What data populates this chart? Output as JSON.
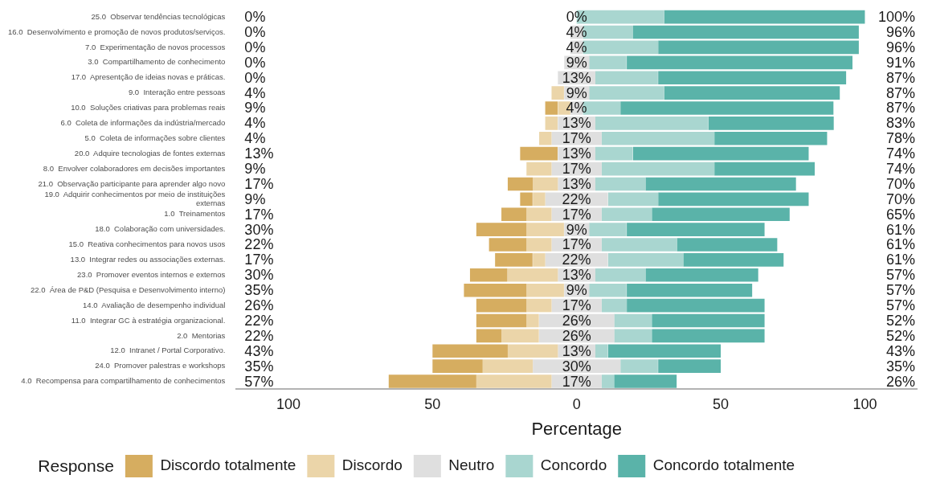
{
  "chart_data": {
    "type": "bar",
    "orientation": "horizontal",
    "xlabel": "Percentage",
    "legend_title": "Response",
    "legend": "bottom",
    "grid": false,
    "categories": [
      "25.0  Observar tendências tecnológicas",
      "16.0  Desenvolvimento e promoção de novos produtos/serviços.",
      "7.0  Experimentação de novos processos",
      "3.0  Compartilhamento de conhecimento",
      "17.0  Apresentção de ideias novas e práticas.",
      "9.0  Interação entre pessoas",
      "10.0  Soluções criativas para problemas reais",
      "6.0  Coleta de informações da indústria/mercado",
      "5.0  Coleta de informações sobre clientes",
      "20.0  Adquire tecnologias de fontes externas",
      "8.0  Envolver colaboradores em decisões importantes",
      "21.0  Observação participante para aprender algo novo",
      "19.0  Adquirir conhecimentos por meio de instituições\nexternas",
      "1.0  Treinamentos",
      "18.0  Colaboração com universidades.",
      "15.0  Reativa conhecimentos para novos usos",
      "13.0  Integrar redes ou associações externas.",
      "23.0  Promover eventos internos e externos",
      "22.0  Área de P&D (Pesquisa e Desenvolvimento interno)",
      "14.0  Avaliação de desempenho individual",
      "11.0  Integrar GC à estratégia organizacional.",
      "2.0  Mentorias",
      "12.0  Intranet / Portal Corporativo.",
      "24.0  Promover palestras e workshops",
      "4.0  Recompensa para compartilhamento de conhecimentos"
    ],
    "xlim": [
      -118,
      118
    ],
    "xticks": [
      {
        "value": -100,
        "label": "100"
      },
      {
        "value": -50,
        "label": "50"
      },
      0,
      50,
      100
    ],
    "series": [
      {
        "name": "Discordo totalmente",
        "color": "#d6ad60",
        "values": [
          null,
          null,
          null,
          null,
          null,
          null,
          4.3,
          null,
          null,
          13.0,
          null,
          8.7,
          4.3,
          8.7,
          17.4,
          13.0,
          13.0,
          13.0,
          21.7,
          17.4,
          17.4,
          8.7,
          26.1,
          17.4,
          30.4
        ],
        "base": [
          null,
          null,
          null,
          null,
          null,
          null,
          -10.9,
          null,
          null,
          -19.6,
          null,
          -23.9,
          -19.6,
          -26.1,
          -34.8,
          -30.4,
          -28.3,
          -37.0,
          -39.1,
          -34.8,
          -34.8,
          -34.8,
          -50.0,
          -50.0,
          -65.2
        ]
      },
      {
        "name": "Discordo",
        "color": "#ebd5a9",
        "values": [
          null,
          null,
          null,
          null,
          null,
          4.3,
          4.3,
          4.3,
          4.3,
          null,
          8.7,
          8.7,
          4.3,
          8.7,
          13.0,
          8.7,
          4.3,
          17.4,
          13.0,
          8.7,
          4.3,
          13.0,
          17.4,
          17.4,
          26.1
        ],
        "base": [
          null,
          null,
          null,
          null,
          null,
          -8.7,
          -6.5,
          -10.9,
          -13.0,
          null,
          -17.4,
          -15.2,
          -15.2,
          -17.4,
          -17.4,
          -17.4,
          -15.2,
          -23.9,
          -17.4,
          -17.4,
          -17.4,
          -26.1,
          -23.9,
          -32.6,
          -34.8
        ]
      },
      {
        "name": "Neutro",
        "color": "#dfdfdf",
        "values": [
          0,
          4.3,
          4.3,
          8.7,
          13.0,
          8.7,
          4.3,
          13.0,
          17.4,
          13.0,
          17.4,
          13.0,
          21.7,
          17.4,
          8.7,
          17.4,
          21.7,
          13.0,
          8.7,
          17.4,
          26.1,
          26.1,
          13.0,
          30.4,
          17.4
        ],
        "base": [
          null,
          -2.2,
          -2.2,
          -4.3,
          -6.5,
          -4.3,
          -2.2,
          -6.5,
          -8.7,
          -6.5,
          -8.7,
          -6.5,
          -10.9,
          -8.7,
          -4.3,
          -8.7,
          -10.9,
          -6.5,
          -4.3,
          -8.7,
          -13.0,
          -13.0,
          -6.5,
          -15.2,
          -8.7
        ],
        "value_labels": [
          "0%",
          "4%",
          "4%",
          "9%",
          "13%",
          "9%",
          "4%",
          "13%",
          "17%",
          "13%",
          "17%",
          "13%",
          "22%",
          "17%",
          "9%",
          "17%",
          "22%",
          "13%",
          "9%",
          "17%",
          "26%",
          "26%",
          "13%",
          "30%",
          "17%"
        ]
      },
      {
        "name": "Concordo",
        "color": "#a9d6d0",
        "values": [
          30.4,
          17.4,
          26.1,
          13.0,
          21.7,
          26.1,
          13.0,
          39.1,
          39.1,
          13.0,
          39.1,
          17.4,
          17.4,
          17.4,
          13.0,
          26.1,
          26.1,
          17.4,
          13.0,
          8.7,
          13.0,
          13.0,
          4.3,
          13.0,
          4.3
        ],
        "base": [
          0,
          2.2,
          2.2,
          4.3,
          6.5,
          4.3,
          2.2,
          6.5,
          8.7,
          6.5,
          8.7,
          6.5,
          10.9,
          8.7,
          4.3,
          8.7,
          10.9,
          6.5,
          4.3,
          8.7,
          13.0,
          13.0,
          6.5,
          15.2,
          8.7
        ]
      },
      {
        "name": "Concordo totalmente",
        "color": "#5ab3a9",
        "values": [
          69.6,
          78.3,
          69.6,
          78.3,
          65.2,
          60.9,
          73.9,
          43.5,
          39.1,
          60.9,
          34.8,
          52.2,
          52.2,
          47.8,
          47.8,
          34.8,
          34.8,
          39.1,
          43.5,
          47.8,
          39.1,
          39.1,
          39.1,
          21.7,
          21.7
        ],
        "base": [
          30.4,
          19.6,
          28.3,
          17.4,
          28.3,
          30.4,
          15.2,
          45.7,
          47.8,
          19.6,
          47.8,
          23.9,
          28.3,
          26.1,
          17.4,
          34.8,
          37.0,
          23.9,
          17.4,
          17.4,
          26.1,
          26.1,
          10.9,
          28.3,
          13.0
        ]
      }
    ],
    "annotations": [
      "0%",
      "0%",
      "0%",
      "0%",
      "0%",
      "4%",
      "9%",
      "4%",
      "4%",
      "13%",
      "9%",
      "17%",
      "9%",
      "17%",
      "30%",
      "22%",
      "17%",
      "30%",
      "35%",
      "26%",
      "22%",
      "22%",
      "43%",
      "35%",
      "57%",
      "100%",
      "96%",
      "96%",
      "91%",
      "87%",
      "87%",
      "87%",
      "83%",
      "78%",
      "74%",
      "74%",
      "70%",
      "70%",
      "65%",
      "61%",
      "61%",
      "61%",
      "57%",
      "57%",
      "57%",
      "52%",
      "52%",
      "43%",
      "35%",
      "26%"
    ]
  }
}
